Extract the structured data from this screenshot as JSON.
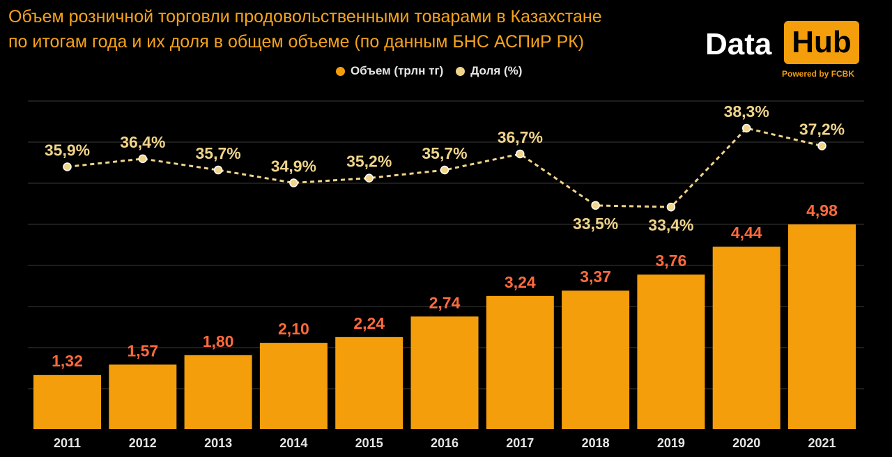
{
  "title_lines": [
    "Объем розничной торговли продовольственными товарами в Казахстане",
    "по итогам года и их доля в общем объеме (по данным БНС АСПиР РК)"
  ],
  "logo": {
    "data_text": "Data",
    "hub_text": "Hub",
    "powered_text": "Powered by FCBK"
  },
  "colors": {
    "bar": "#F59E0B",
    "bar_label": "#FF6A3D",
    "line": "#F0D48A",
    "line_label": "#F0D48A",
    "title": "#F5A31A",
    "grid": "#3A3A3A",
    "axis_text": "#E6E6E6"
  },
  "chart_data": {
    "type": "bar",
    "title": "Объем розничной торговли продовольственными товарами в Казахстане по итогам года и их доля в общем объеме (по данным БНС АСПиР РК)",
    "categories": [
      "2011",
      "2012",
      "2013",
      "2014",
      "2015",
      "2016",
      "2017",
      "2018",
      "2019",
      "2020",
      "2021"
    ],
    "series": [
      {
        "name": "Объем (трлн тг)",
        "type": "bar",
        "values": [
          1.32,
          1.57,
          1.8,
          2.1,
          2.24,
          2.74,
          3.24,
          3.37,
          3.76,
          4.44,
          4.98
        ],
        "labels": [
          "1,32",
          "1,57",
          "1,80",
          "2,10",
          "2,24",
          "2,74",
          "3,24",
          "3,37",
          "3,76",
          "4,44",
          "4,98"
        ]
      },
      {
        "name": "Доля (%)",
        "type": "line",
        "style": "dashed",
        "values": [
          35.9,
          36.4,
          35.7,
          34.9,
          35.2,
          35.7,
          36.7,
          33.5,
          33.4,
          38.3,
          37.2
        ],
        "labels": [
          "35,9%",
          "36,4%",
          "35,7%",
          "34,9%",
          "35,2%",
          "35,7%",
          "36,7%",
          "33,5%",
          "33,4%",
          "38,3%",
          "37,2%"
        ],
        "label_position": [
          "above",
          "above",
          "above",
          "above",
          "above",
          "above",
          "above",
          "below",
          "below",
          "above",
          "above"
        ]
      }
    ],
    "legend_position": "top-center",
    "grid": true
  }
}
